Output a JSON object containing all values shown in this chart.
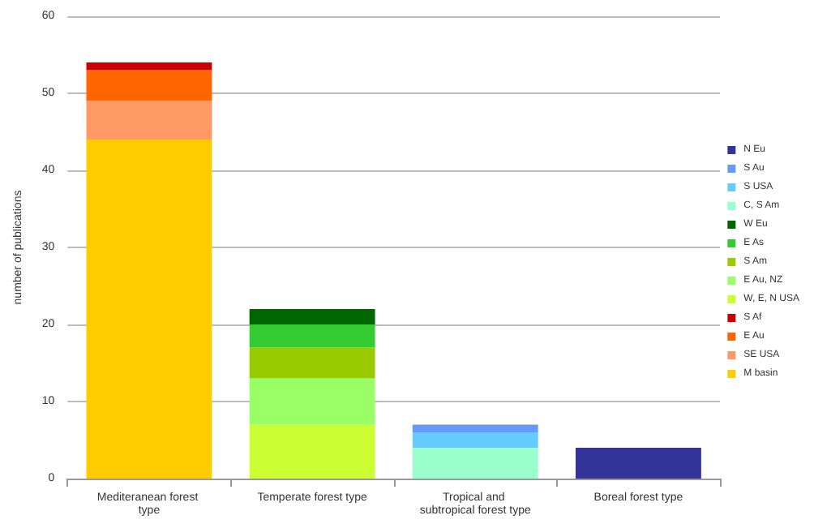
{
  "chart_data": {
    "type": "bar",
    "ylabel": "number of publications",
    "categories": [
      "Mediteranean forest type",
      "Temperate forest type",
      "Tropical and subtropical forest type",
      "Boreal forest type"
    ],
    "stacked": true,
    "ylim": [
      0,
      60
    ],
    "yticks": [
      0,
      10,
      20,
      30,
      40,
      50,
      60
    ],
    "grid": "y",
    "legend": "right",
    "series": [
      {
        "name": "M basin",
        "color": "#ffcc00",
        "values": [
          44,
          null,
          null,
          null
        ]
      },
      {
        "name": "SE USA",
        "color": "#ff9966",
        "values": [
          5,
          null,
          null,
          null
        ]
      },
      {
        "name": "E Au",
        "color": "#ff6600",
        "values": [
          4,
          null,
          null,
          null
        ]
      },
      {
        "name": "S Af",
        "color": "#cc0000",
        "values": [
          1,
          null,
          null,
          null
        ]
      },
      {
        "name": "W, E, N USA",
        "color": "#ccff33",
        "values": [
          null,
          7,
          null,
          null
        ]
      },
      {
        "name": "E Au, NZ",
        "color": "#99ff66",
        "values": [
          null,
          6,
          null,
          null
        ]
      },
      {
        "name": "S Am",
        "color": "#99cc00",
        "values": [
          null,
          4,
          null,
          null
        ]
      },
      {
        "name": "E As",
        "color": "#33cc33",
        "values": [
          null,
          3,
          null,
          null
        ]
      },
      {
        "name": "W Eu",
        "color": "#006600",
        "values": [
          null,
          2,
          null,
          null
        ]
      },
      {
        "name": "C, S Am",
        "color": "#99ffcc",
        "values": [
          null,
          null,
          4,
          null
        ]
      },
      {
        "name": "S USA",
        "color": "#66ccff",
        "values": [
          null,
          null,
          2,
          null
        ]
      },
      {
        "name": "S Au",
        "color": "#6699ff",
        "values": [
          null,
          null,
          1,
          null
        ]
      },
      {
        "name": "N Eu",
        "color": "#333399",
        "values": [
          null,
          null,
          null,
          4
        ]
      }
    ]
  }
}
